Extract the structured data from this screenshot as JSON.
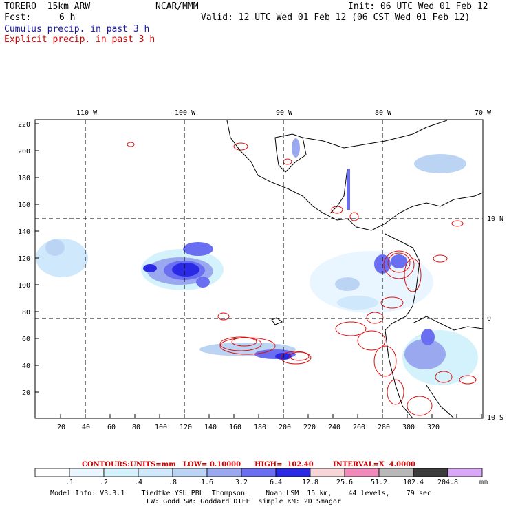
{
  "header": {
    "model_name": "TORERO  15km ARW",
    "org": "NCAR/MMM",
    "init": "Init: 06 UTC Wed 01 Feb 12",
    "fcst_label": "Fcst:",
    "fcst_value": "6 h",
    "valid": "Valid: 12 UTC Wed 01 Feb 12 (06 CST Wed 01 Feb 12)",
    "field_cumulus": "Cumulus precip. in past 3 h",
    "field_explicit": "Explicit precip. in past 3 h"
  },
  "colors": {
    "cumulus_text": "#1a1aa0",
    "explicit_text": "#d10000",
    "contour_line": "#dd1111",
    "coast": "#000000"
  },
  "axes": {
    "top_lon_labels": [
      "110 W",
      "100 W",
      "90 W",
      "80 W",
      "70 W"
    ],
    "right_lat_labels": [
      "10 N",
      "0",
      "10 S"
    ],
    "y_ticks": [
      "220",
      "200",
      "180",
      "160",
      "140",
      "120",
      "100",
      "80",
      "60",
      "40",
      "20"
    ],
    "x_ticks": [
      "20",
      "40",
      "60",
      "80",
      "100",
      "120",
      "140",
      "160",
      "180",
      "200",
      "220",
      "240",
      "260",
      "280",
      "300",
      "320"
    ]
  },
  "contours": {
    "label": "CONTOURS:",
    "units": "UNITS=mm",
    "low": "LOW= 0.10000",
    "high": "HIGH=  102.40",
    "interval": "INTERVAL=X  4.0000"
  },
  "colorbar": {
    "unit": "mm",
    "labels": [
      ".1",
      ".2",
      ".4",
      ".8",
      "1.6",
      "3.2",
      "6.4",
      "12.8",
      "25.6",
      "51.2",
      "102.4",
      "204.8"
    ],
    "colors": [
      "#ffffff",
      "#eaf6ff",
      "#d4f2fb",
      "#d0e8fb",
      "#bcd4f4",
      "#9aa8f0",
      "#6a6ef0",
      "#2a2ae6",
      "#f6d6d6",
      "#f08aba",
      "#b8b8b8",
      "#3c3c3c",
      "#d8a8f6"
    ]
  },
  "footer": {
    "line1": "Model Info: V3.3.1    Tiedtke YSU PBL  Thompson     Noah LSM  15 km,    44 levels,    79 sec",
    "line2": "LW: Godd SW: Goddard DIFF  simple KM: 2D Smagor"
  }
}
